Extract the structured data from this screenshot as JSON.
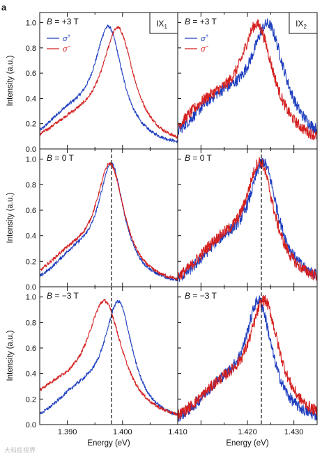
{
  "figure": {
    "panel_letter": "a",
    "watermark": "大科技视界"
  },
  "chart_data": [
    {
      "type": "line",
      "panel": "IX1, B = +3 T",
      "title": "B = +3 T",
      "tag": "IX",
      "tag_sub": "1",
      "xlim": [
        1.385,
        1.41
      ],
      "ylim": [
        0,
        1.08
      ],
      "ylabel": "Intensity (a.u.)",
      "xlabel": "",
      "yticks": [
        "0.0",
        "0.2",
        "0.4",
        "0.6",
        "0.8",
        "1.0"
      ],
      "xticks": [],
      "dashed_line": null,
      "legend": {
        "entries": [
          "σ+",
          "σ−"
        ],
        "placement": "top-left"
      },
      "series": [
        {
          "name": "σ+",
          "color": "#1f3fbf",
          "center": 1.3975,
          "width": 0.0052,
          "shoulder": 0.2
        },
        {
          "name": "σ−",
          "color": "#d42020",
          "center": 1.3992,
          "width": 0.0058,
          "shoulder": 0.15
        }
      ]
    },
    {
      "type": "line",
      "panel": "IX2, B = +3 T",
      "title": "B = +3 T",
      "tag": "IX",
      "tag_sub": "2",
      "xlim": [
        1.405,
        1.435
      ],
      "ylim": [
        0,
        1.08
      ],
      "ylabel": "",
      "xlabel": "",
      "yticks": [],
      "xticks": [],
      "dashed_line": null,
      "legend": {
        "entries": [
          "σ+",
          "σ−"
        ],
        "placement": "top-left"
      },
      "series": [
        {
          "name": "σ+",
          "color": "#1f3fbf",
          "center": 1.4245,
          "width": 0.0075,
          "shoulder": 0.3
        },
        {
          "name": "σ−",
          "color": "#d42020",
          "center": 1.4222,
          "width": 0.0072,
          "shoulder": 0.28
        }
      ]
    },
    {
      "type": "line",
      "panel": "IX1, B = 0 T",
      "title": "B = 0 T",
      "xlim": [
        1.385,
        1.41
      ],
      "ylim": [
        0,
        1.08
      ],
      "ylabel": "Intensity (a.u.)",
      "xlabel": "",
      "yticks": [
        "0.0",
        "0.2",
        "0.4",
        "0.6",
        "0.8",
        "1.0"
      ],
      "xticks": [],
      "dashed_line": 1.398,
      "series": [
        {
          "name": "σ+",
          "color": "#1f3fbf",
          "center": 1.398,
          "width": 0.0047,
          "shoulder": 0.18
        },
        {
          "name": "σ−",
          "color": "#d42020",
          "center": 1.3978,
          "width": 0.0052,
          "shoulder": 0.18
        }
      ]
    },
    {
      "type": "line",
      "panel": "IX2, B = 0 T",
      "title": "B = 0 T",
      "xlim": [
        1.405,
        1.435
      ],
      "ylim": [
        0,
        1.08
      ],
      "ylabel": "",
      "xlabel": "",
      "yticks": [],
      "xticks": [],
      "dashed_line": 1.423,
      "series": [
        {
          "name": "σ+",
          "color": "#1f3fbf",
          "center": 1.4235,
          "width": 0.0062,
          "shoulder": 0.25
        },
        {
          "name": "σ−",
          "color": "#d42020",
          "center": 1.4228,
          "width": 0.0062,
          "shoulder": 0.25
        }
      ]
    },
    {
      "type": "line",
      "panel": "IX1, B = -3 T",
      "title": "B = −3 T",
      "xlim": [
        1.385,
        1.41
      ],
      "ylim": [
        0,
        1.08
      ],
      "ylabel": "Intensity (a.u.)",
      "xlabel": "Energy (eV)",
      "yticks": [
        "0.0",
        "0.2",
        "0.4",
        "0.6",
        "0.8",
        "1.0"
      ],
      "xticks": [
        "1.390",
        "1.400",
        "1.410"
      ],
      "dashed_line": 1.398,
      "series": [
        {
          "name": "σ+",
          "color": "#1f3fbf",
          "center": 1.3993,
          "width": 0.0052,
          "shoulder": 0.18
        },
        {
          "name": "σ−",
          "color": "#d42020",
          "center": 1.3968,
          "width": 0.0065,
          "shoulder": 0.2
        }
      ]
    },
    {
      "type": "line",
      "panel": "IX2, B = -3 T",
      "title": "B = −3 T",
      "xlim": [
        1.405,
        1.435
      ],
      "ylim": [
        0,
        1.08
      ],
      "ylabel": "",
      "xlabel": "Energy (eV)",
      "yticks": [],
      "xticks": [
        "1.420",
        "1.430"
      ],
      "dashed_line": 1.423,
      "series": [
        {
          "name": "σ+",
          "color": "#1f3fbf",
          "center": 1.4225,
          "width": 0.0058,
          "shoulder": 0.22
        },
        {
          "name": "σ−",
          "color": "#d42020",
          "center": 1.4237,
          "width": 0.0065,
          "shoulder": 0.22
        }
      ]
    }
  ]
}
